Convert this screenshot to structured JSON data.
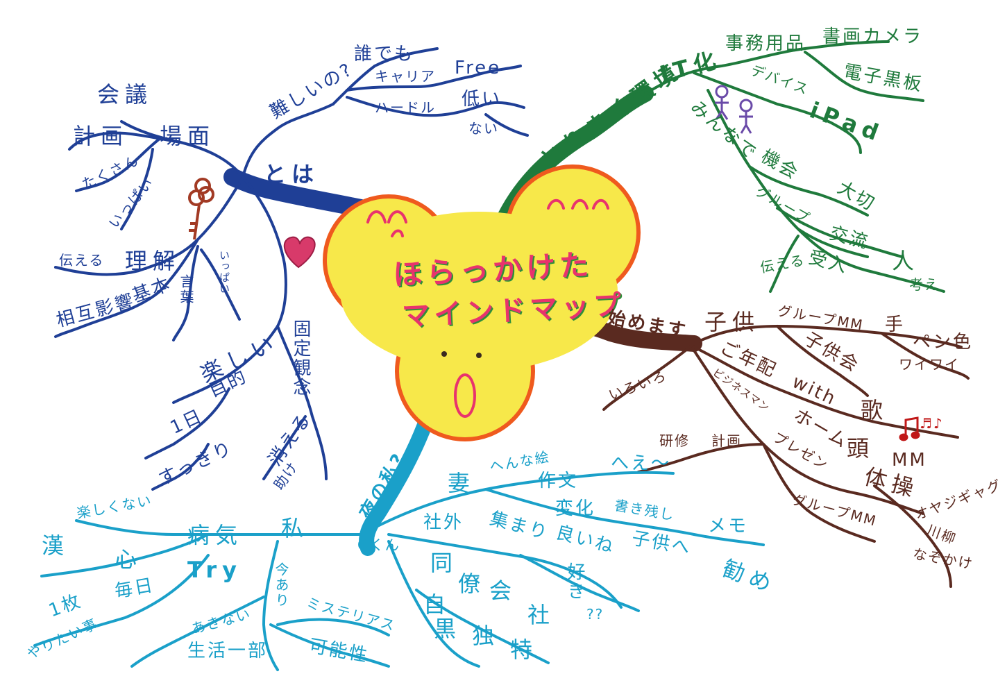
{
  "center": {
    "line1": "ほらっかけた",
    "line2": "マインドマップ"
  },
  "colors": {
    "blue": "#1f3f96",
    "green": "#1f7a3c",
    "brown": "#5a2a20",
    "cyan": "#1aa0c9",
    "center_fill": "#f7e84a",
    "center_outline": "#ef5a1e",
    "title": "#e8336d"
  },
  "branches": {
    "blue": {
      "main": "とは",
      "scene": "場面",
      "meeting": "会議",
      "plan": "計画",
      "many": "たくさん",
      "full": "いっぱい",
      "difficult": "難しいの?",
      "anyone": "誰でも",
      "career": "キャリア",
      "free": "Free",
      "hurdle": "ハードル",
      "low": "低い",
      "none": "ない",
      "understand": "理解",
      "convey": "伝える",
      "mutual": "相互影響",
      "basic": "基本",
      "word": "言葉",
      "full2": "いっぱい",
      "fun": "楽しい",
      "fixed": "固定観念",
      "purpose": "目的",
      "oneday": "1日",
      "refresh": "すっきり",
      "disappear": "消える",
      "help": "助け"
    },
    "green": {
      "main": "とりまく環境",
      "it": "IT化",
      "office": "事務用品",
      "book": "書画カメラ",
      "board": "電子黒板",
      "device": "デバイス",
      "ipad": "iPad",
      "everyone": "みんなで",
      "opportunity": "機会",
      "important": "大切",
      "group": "グループ",
      "exchange": "交流",
      "receive": "受入",
      "person": "人",
      "convey": "伝える",
      "think": "考え"
    },
    "brown": {
      "main": "始めます",
      "child": "子供",
      "group": "グループMM",
      "hand": "手",
      "pen": "ペン色",
      "waiwai": "ワイワイ",
      "childgroup": "子供会",
      "elderly": "ご年配",
      "various": "いろいろ",
      "with": "with",
      "song": "歌",
      "note": "♬♪",
      "business": "ビジネスマン",
      "home": "ホーム",
      "head": "頭",
      "mm": "MM",
      "exercise": "体操",
      "gag": "オヤジギャグ",
      "senryu": "川柳",
      "riddle": "なぞかけ",
      "training": "研修",
      "plan": "計画",
      "present": "プレゼン",
      "groupmm": "グループMM"
    },
    "cyan": {
      "main": "夜の私?...",
      "wife": "妻",
      "weird": "へんな絵",
      "essay": "作文",
      "hee": "へえ〜",
      "change": "変化",
      "leave": "書き残し",
      "memo": "メモ",
      "kids": "子供へ",
      "recommend": "勧め",
      "company_out": "社外",
      "meeting": "集まり",
      "good": "良いね",
      "like": "好き",
      "huh": "??",
      "okun": "Oくん",
      "same": "同",
      "ryou": "僚",
      "kai": "会",
      "sha": "社",
      "self": "自",
      "ga": "黒",
      "dokuzan": "独",
      "toku": "特",
      "me": "私",
      "ill": "病気",
      "notfun": "楽しくない",
      "heart": "心",
      "kanji": "漢",
      "try": "Try",
      "now": "今あり",
      "everyday": "毎日",
      "one": "1枚",
      "wants": "やりたい事",
      "bored": "あきない",
      "life": "生活一部",
      "mystery": "ミステリアス",
      "possible": "可能性"
    }
  }
}
